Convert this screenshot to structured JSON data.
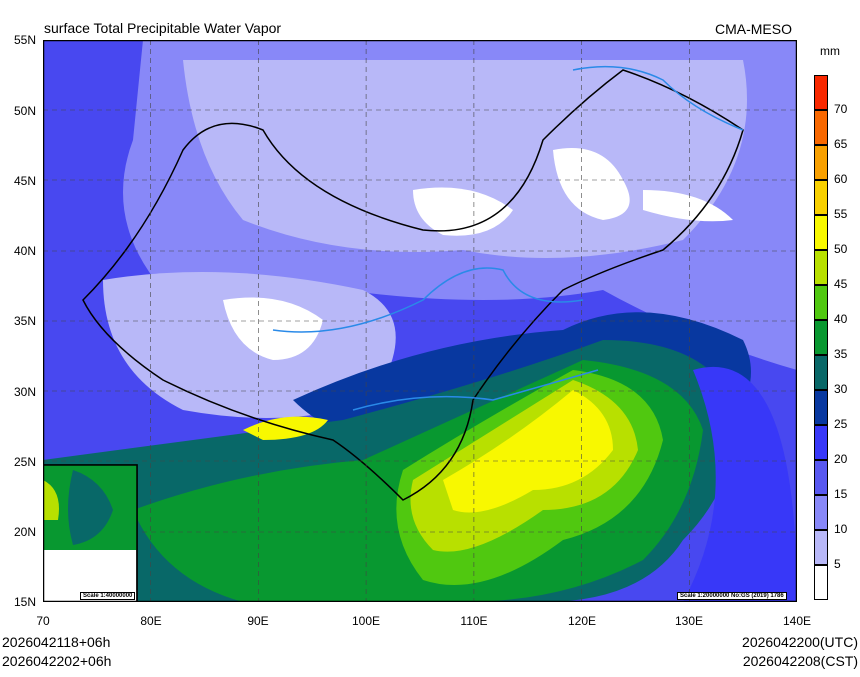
{
  "header": {
    "title": "surface Total Precipitable Water Vapor",
    "model": "CMA-MESO"
  },
  "colorbar": {
    "unit": "mm",
    "levels": [
      "5",
      "10",
      "15",
      "20",
      "25",
      "30",
      "35",
      "40",
      "45",
      "50",
      "55",
      "60",
      "65",
      "70"
    ],
    "colors": [
      "#ffffff",
      "#b8b8f8",
      "#8888f8",
      "#5858f0",
      "#3838f8",
      "#0838a0",
      "#086868",
      "#089830",
      "#50c810",
      "#b8e000",
      "#f8f800",
      "#f8d000",
      "#f8a000",
      "#f86800",
      "#f82800"
    ]
  },
  "axes": {
    "lat_labels": [
      "55N",
      "50N",
      "45N",
      "40N",
      "35N",
      "30N",
      "25N",
      "20N",
      "15N"
    ],
    "lon_labels": [
      "70",
      "80E",
      "90E",
      "100E",
      "110E",
      "120E",
      "130E",
      "140E"
    ]
  },
  "inset": {
    "scale": "Scale 1:40000000"
  },
  "map": {
    "scale": "Scale 1:20000000 No:GS (2019) 1786"
  },
  "footer": {
    "init_left": "2026042118+06h",
    "valid_left": "2026042202+06h",
    "utc": "2026042200(UTC)",
    "cst": "2026042208(CST)"
  }
}
